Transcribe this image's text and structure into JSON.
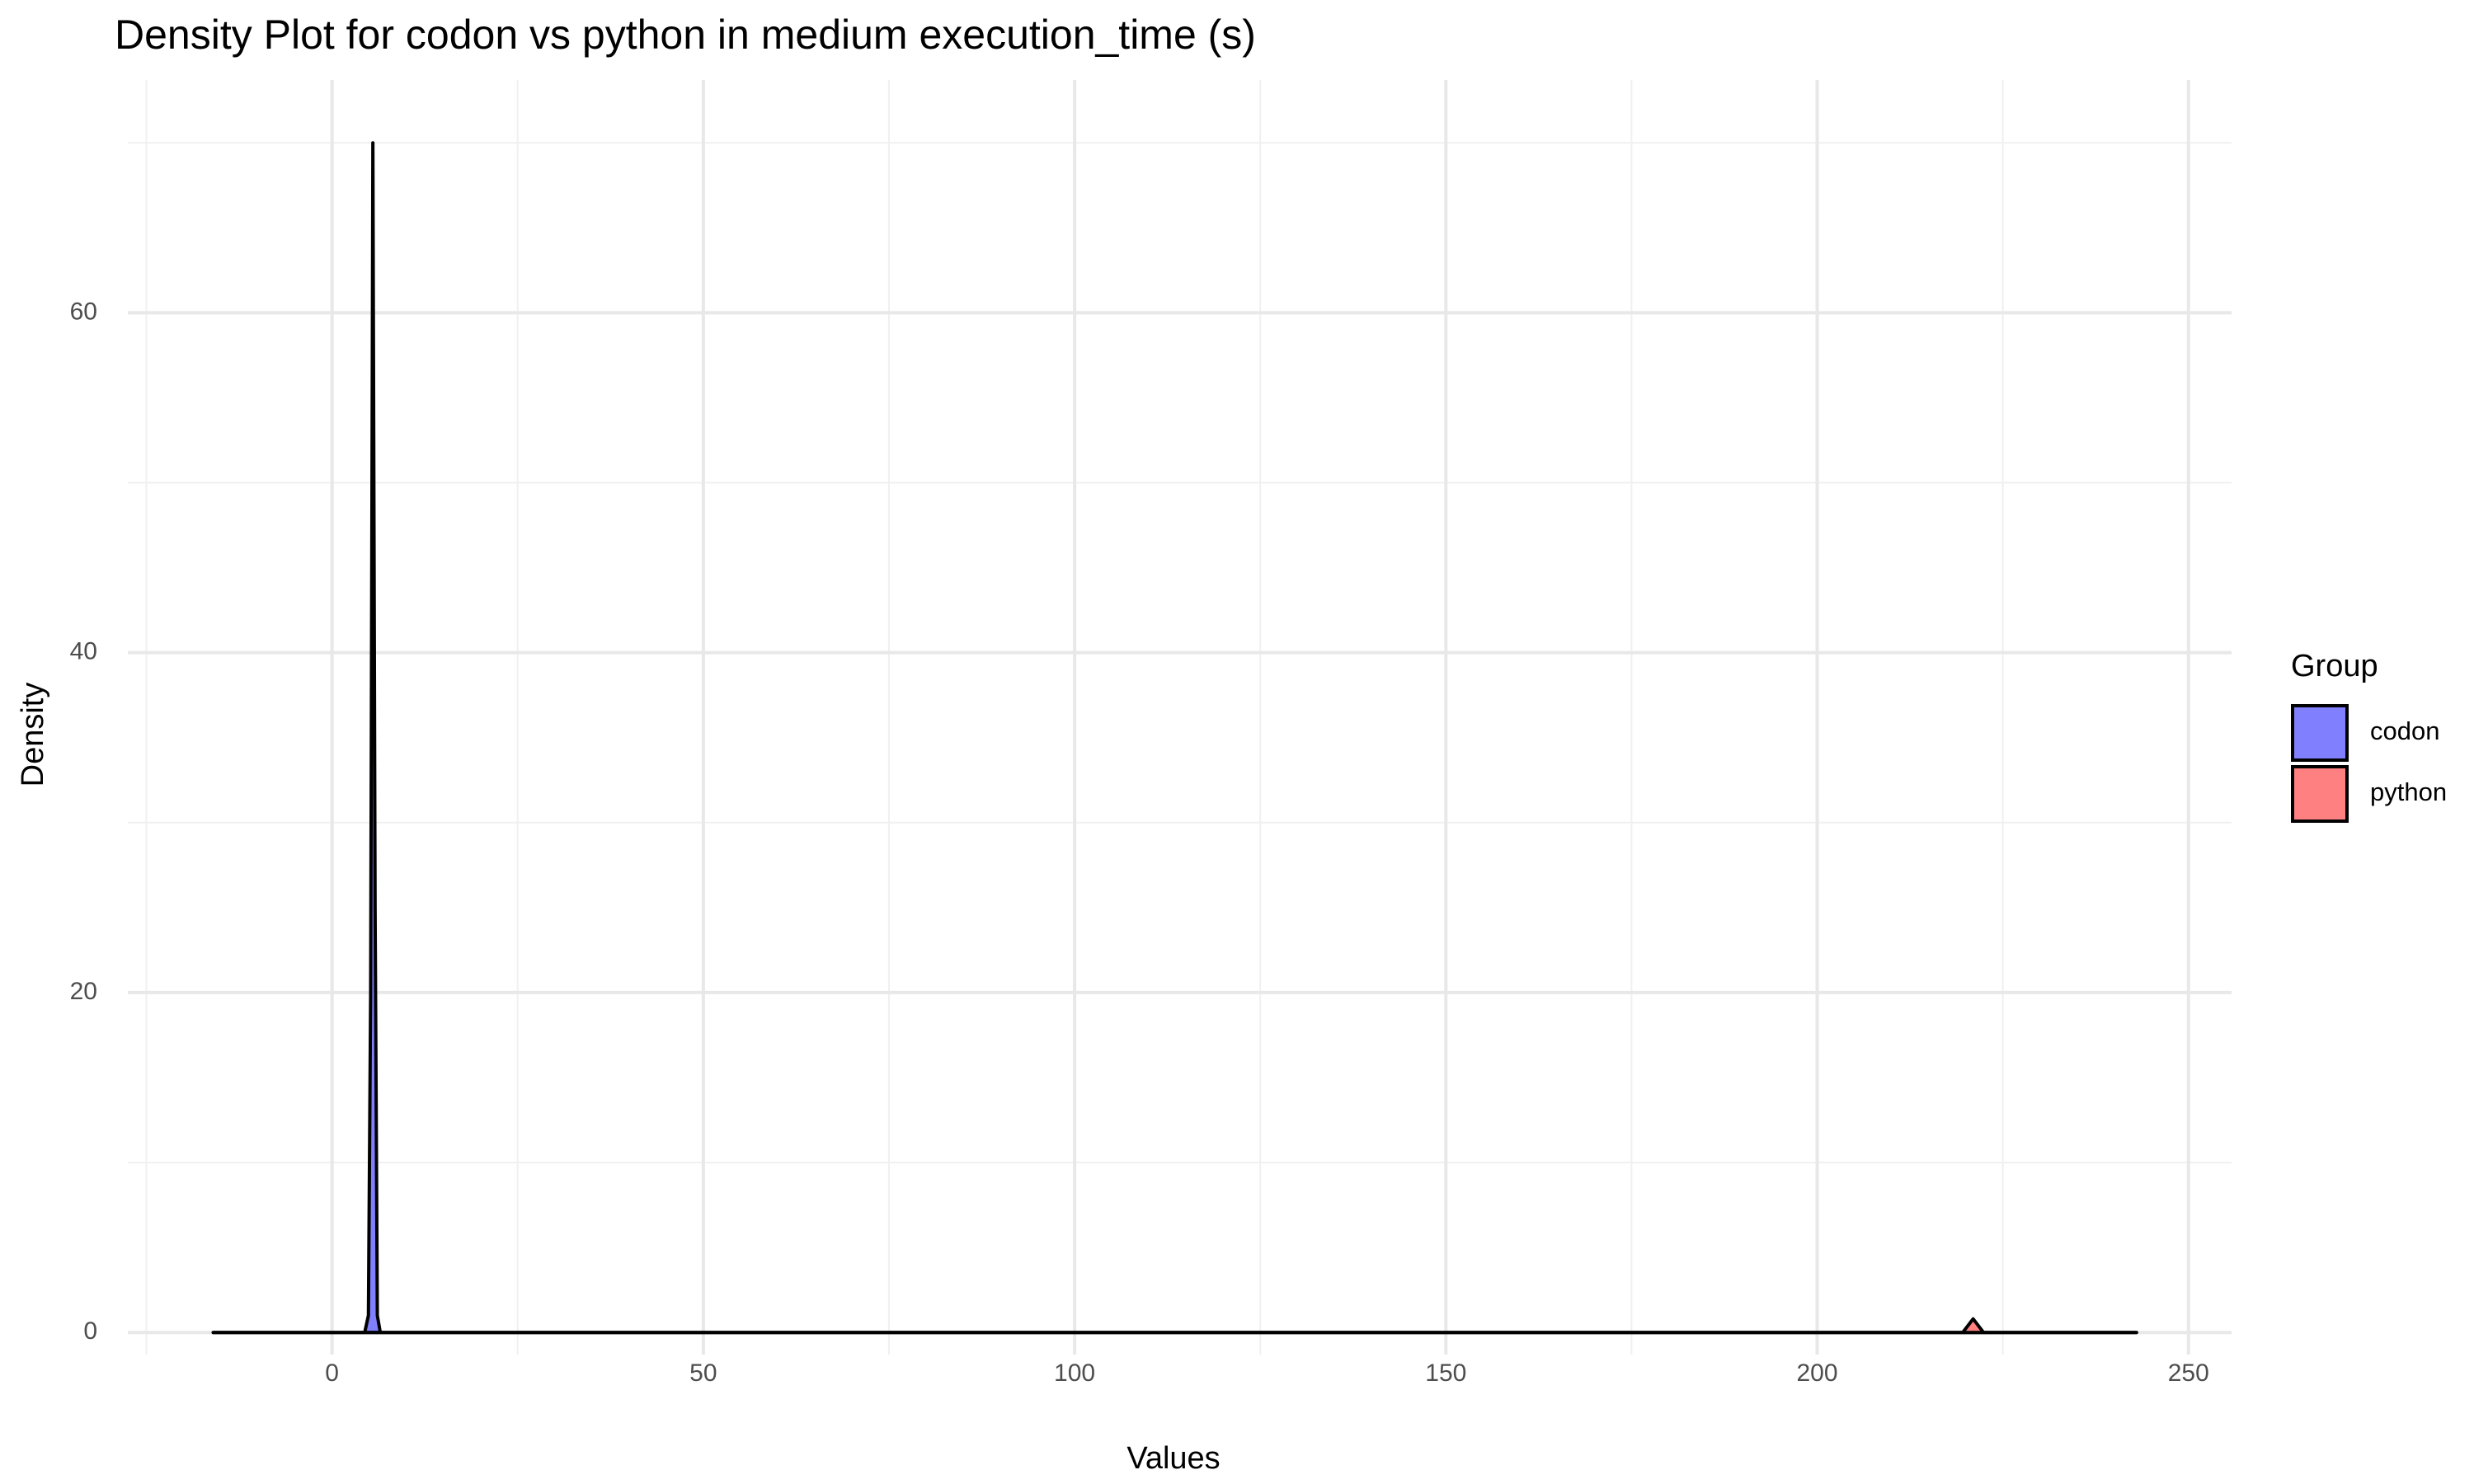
{
  "chart_data": {
    "type": "density",
    "title": "Density Plot for codon vs python in medium execution_time (s)",
    "x_label": "Values",
    "y_label": "Density",
    "legend_title": "Group",
    "legend_position": "right",
    "series": [
      {
        "name": "codon",
        "color": "#8080ff",
        "x": [
          -16,
          4.4,
          4.9,
          5.2,
          5.5,
          5.8,
          6.1,
          6.5,
          243
        ],
        "values": [
          0,
          0,
          1,
          20,
          70,
          25,
          1,
          0,
          0
        ]
      },
      {
        "name": "python",
        "color": "#ff8080",
        "x": [
          -16,
          219.6,
          221,
          222.4,
          243
        ],
        "values": [
          0,
          0,
          0.8,
          0,
          0
        ]
      }
    ],
    "xlim": [
      -27.5,
      255.8
    ],
    "xticks": [
      0,
      50,
      100,
      150,
      200,
      250
    ],
    "x_minor_ticks": [
      -25,
      25,
      75,
      125,
      175,
      225
    ],
    "ylim": [
      -1.3,
      73.7
    ],
    "yticks": [
      0,
      20,
      40,
      60
    ],
    "y_minor_ticks": [
      10,
      30,
      50,
      70
    ],
    "grid": true
  }
}
